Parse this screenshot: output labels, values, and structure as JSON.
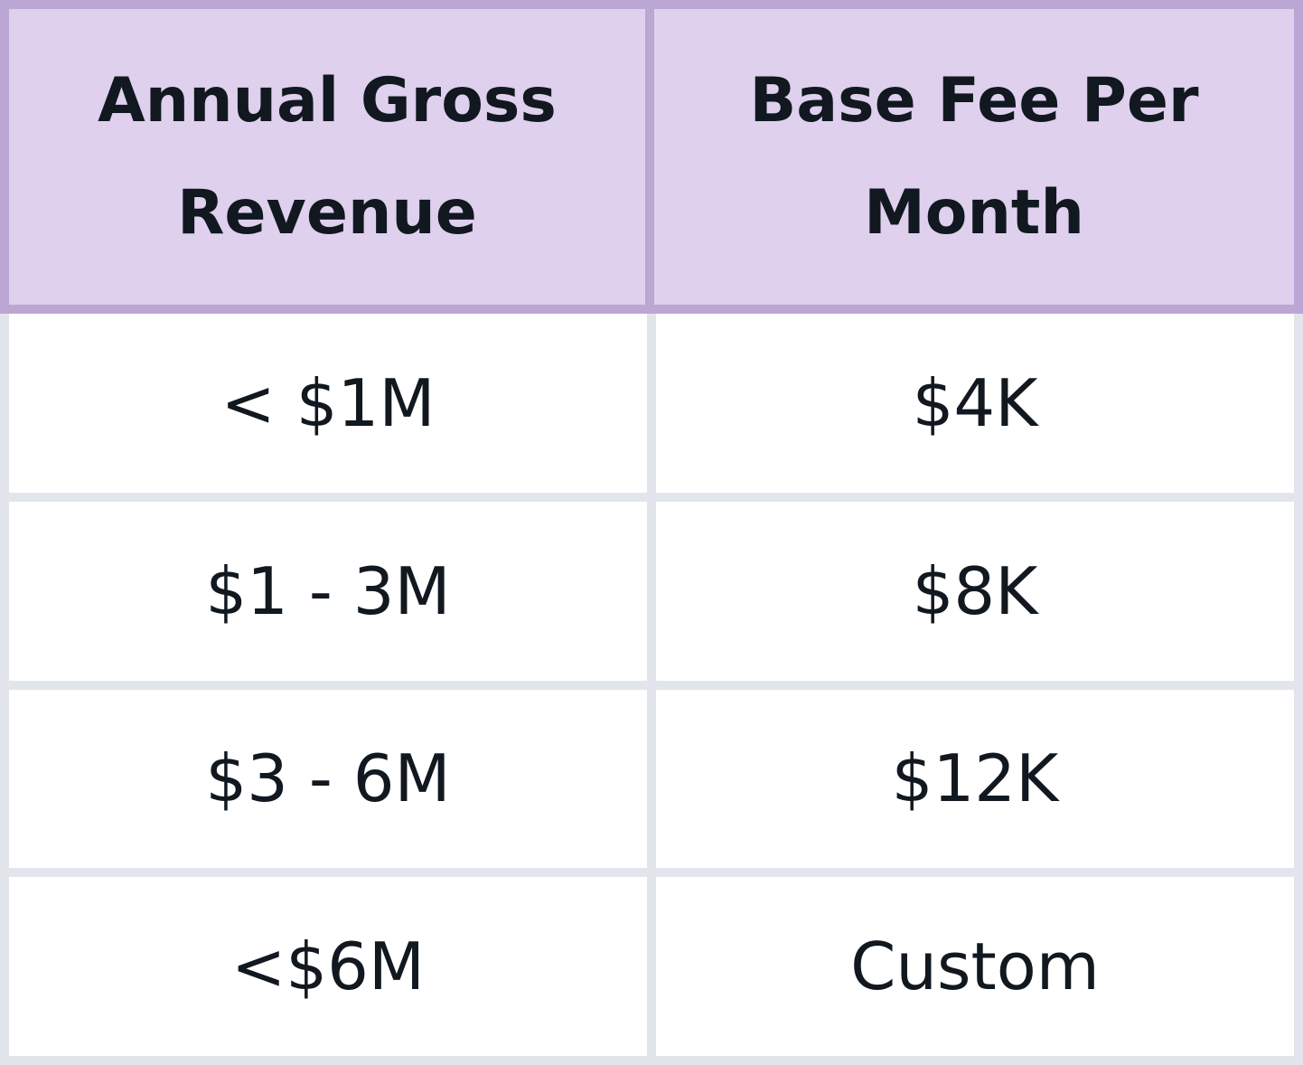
{
  "table": {
    "columns": [
      "Annual Gross Revenue",
      "Base Fee Per Month"
    ],
    "rows": [
      [
        "< $1M",
        "$4K"
      ],
      [
        "$1 - 3M",
        "$8K"
      ],
      [
        "$3 - 6M",
        "$12K"
      ],
      [
        "<$6M",
        "Custom"
      ]
    ]
  }
}
